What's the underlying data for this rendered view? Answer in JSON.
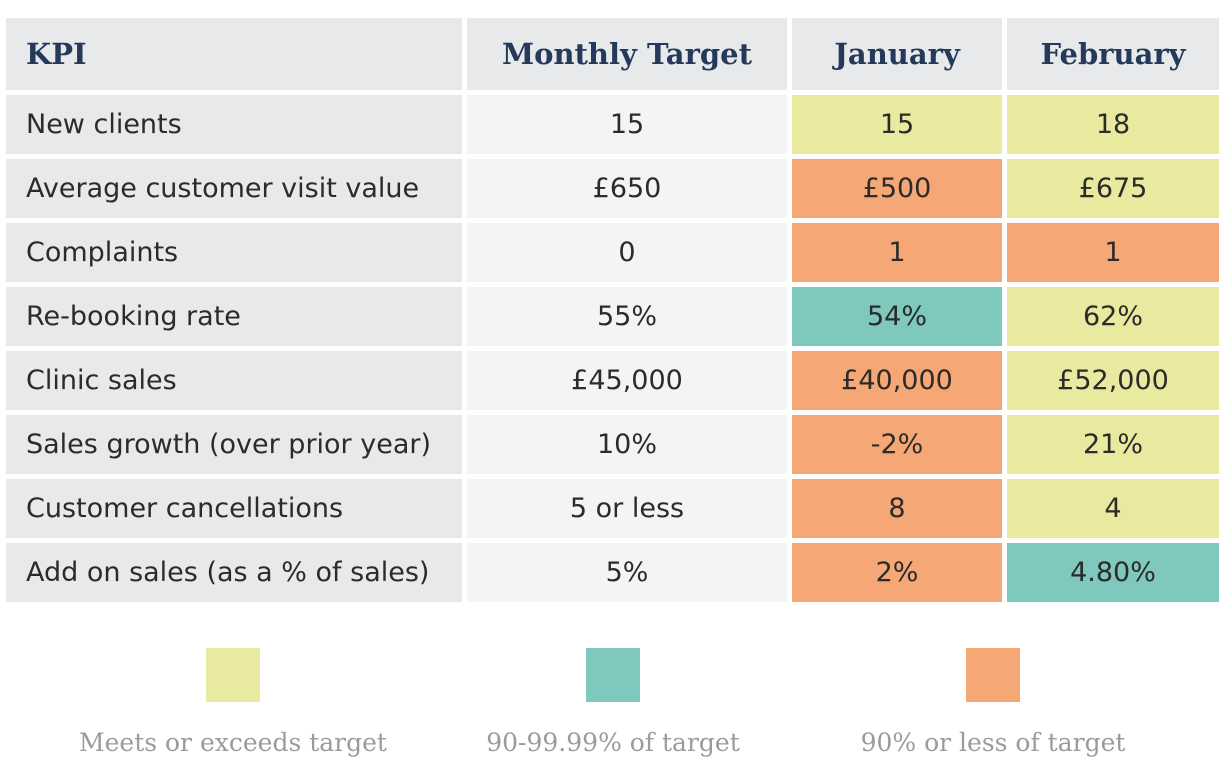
{
  "chart_data": {
    "type": "table",
    "columns": [
      "KPI",
      "Monthly Target",
      "January",
      "February"
    ],
    "rows": [
      {
        "kpi": "New clients",
        "target": "15",
        "january": "15",
        "february": "18",
        "january_status": "meets",
        "february_status": "meets"
      },
      {
        "kpi": "Average customer visit value",
        "target": "£650",
        "january": "£500",
        "february": "£675",
        "january_status": "below",
        "february_status": "meets"
      },
      {
        "kpi": "Complaints",
        "target": "0",
        "january": "1",
        "february": "1",
        "january_status": "below",
        "february_status": "below"
      },
      {
        "kpi": "Re-booking rate",
        "target": "55%",
        "january": "54%",
        "february": "62%",
        "january_status": "near",
        "february_status": "meets"
      },
      {
        "kpi": "Clinic sales",
        "target": "£45,000",
        "january": "£40,000",
        "february": "£52,000",
        "january_status": "below",
        "february_status": "meets"
      },
      {
        "kpi": "Sales growth (over prior year)",
        "target": "10%",
        "january": "-2%",
        "february": "21%",
        "january_status": "below",
        "february_status": "meets"
      },
      {
        "kpi": "Customer cancellations",
        "target": "5 or less",
        "january": "8",
        "february": "4",
        "january_status": "below",
        "february_status": "meets"
      },
      {
        "kpi": "Add on sales (as a % of sales)",
        "target": "5%",
        "january": "2%",
        "february": "4.80%",
        "january_status": "below",
        "february_status": "near"
      }
    ],
    "legend": [
      {
        "key": "meets",
        "label": "Meets or exceeds target",
        "color": "#e9ea9f"
      },
      {
        "key": "near",
        "label": "90-99.99% of target",
        "color": "#7ec8bd"
      },
      {
        "key": "below",
        "label": "90% or less of target",
        "color": "#f5a775"
      }
    ]
  }
}
